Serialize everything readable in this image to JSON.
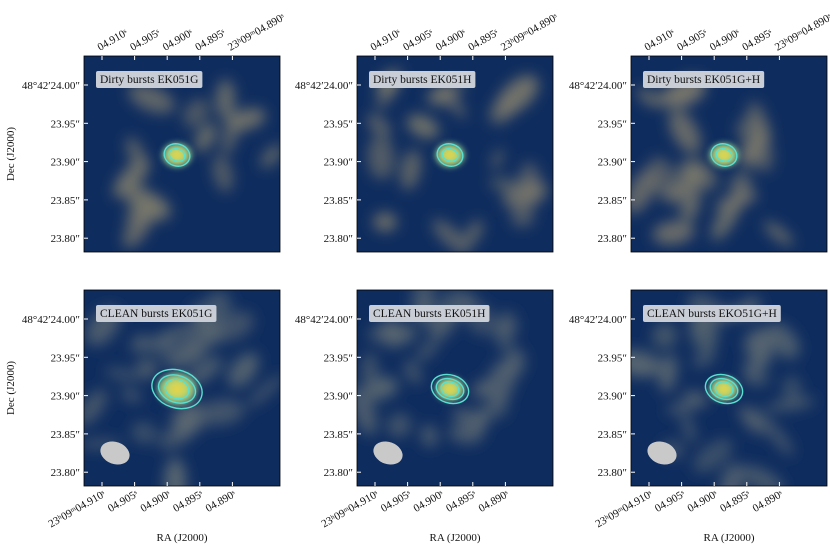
{
  "figure": {
    "y_axis_label": "Dec (J2000)",
    "x_axis_label": "RA (J2000)",
    "dec_ticks": [
      "48°42′24.00″",
      "23.95″",
      "23.90″",
      "23.85″",
      "23.80″"
    ],
    "ra_ticks_top": [
      "04.910ˢ",
      "04.905ˢ",
      "04.900ˢ",
      "04.895ˢ",
      "23ʰ09ᵐ04.890ˢ"
    ],
    "ra_ticks_bottom": [
      "23ʰ09ᵐ04.910ˢ",
      "04.905ˢ",
      "04.900ˢ",
      "04.895ˢ",
      "04.890ˢ"
    ],
    "panels": [
      {
        "label": "Dirty bursts EK051G"
      },
      {
        "label": "Dirty bursts EK051H"
      },
      {
        "label": "Dirty bursts EK051G+H"
      },
      {
        "label": "CLEAN bursts EK051G"
      },
      {
        "label": "CLEAN bursts EK051H"
      },
      {
        "label": "CLEAN bursts EKO51G+H"
      }
    ]
  }
}
